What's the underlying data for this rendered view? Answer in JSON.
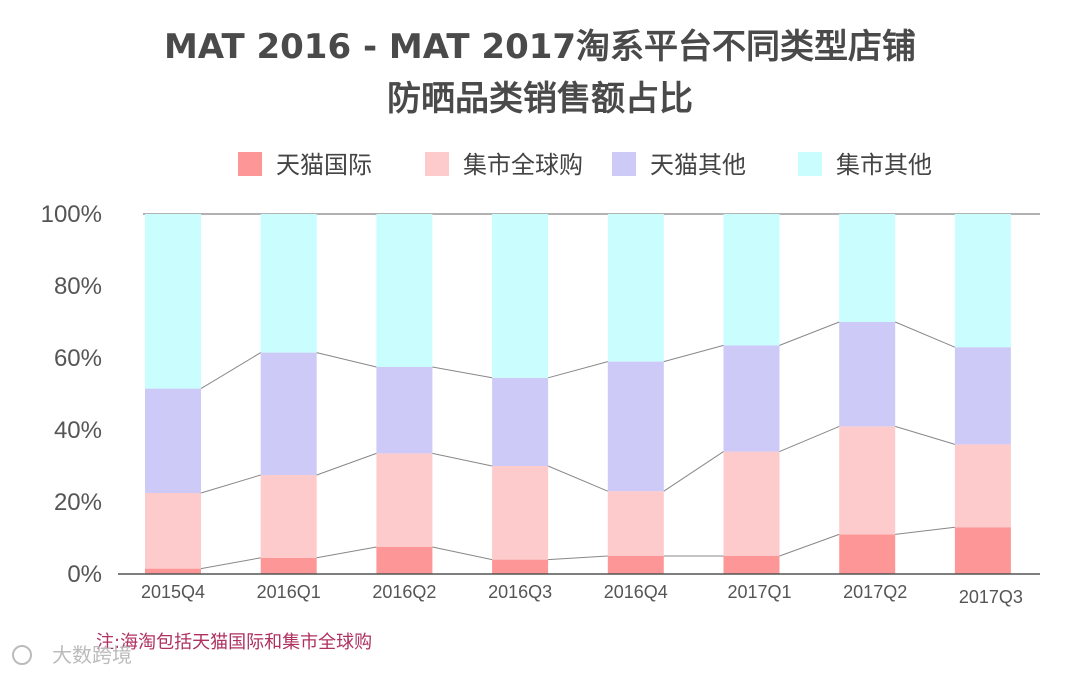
{
  "watermark": "大数跨境",
  "note": "注:海淘包括天猫国际和集市全球购",
  "chart_data": {
    "type": "bar",
    "stacked": true,
    "title_lines": [
      "MAT 2016 - MAT 2017淘系平台不同类型店铺",
      "防晒品类销售额占比"
    ],
    "categories": [
      "2015Q4",
      "2016Q1",
      "2016Q2",
      "2016Q3",
      "2016Q4",
      "2017Q1",
      "2017Q2",
      "2017Q3"
    ],
    "series": [
      {
        "name": "天猫国际",
        "color": "#fd9797",
        "values": [
          1.5,
          4.5,
          7.5,
          4,
          5,
          5,
          11,
          13
        ]
      },
      {
        "name": "集市全球购",
        "color": "#fdcbcb",
        "values": [
          21,
          23,
          26,
          26,
          18,
          29,
          30,
          23
        ]
      },
      {
        "name": "天猫其他",
        "color": "#cdcaf8",
        "values": [
          29,
          34,
          24,
          24.5,
          36,
          29.5,
          29,
          27
        ]
      },
      {
        "name": "集市其他",
        "color": "#cafdfd",
        "values": [
          48.5,
          38.5,
          42.5,
          45.5,
          41,
          36.5,
          30,
          37
        ]
      }
    ],
    "ylim": [
      0,
      100
    ],
    "yticks": [
      "0%",
      "20%",
      "40%",
      "60%",
      "80%",
      "100%"
    ],
    "legend_position": "top",
    "connector_lines": true
  }
}
